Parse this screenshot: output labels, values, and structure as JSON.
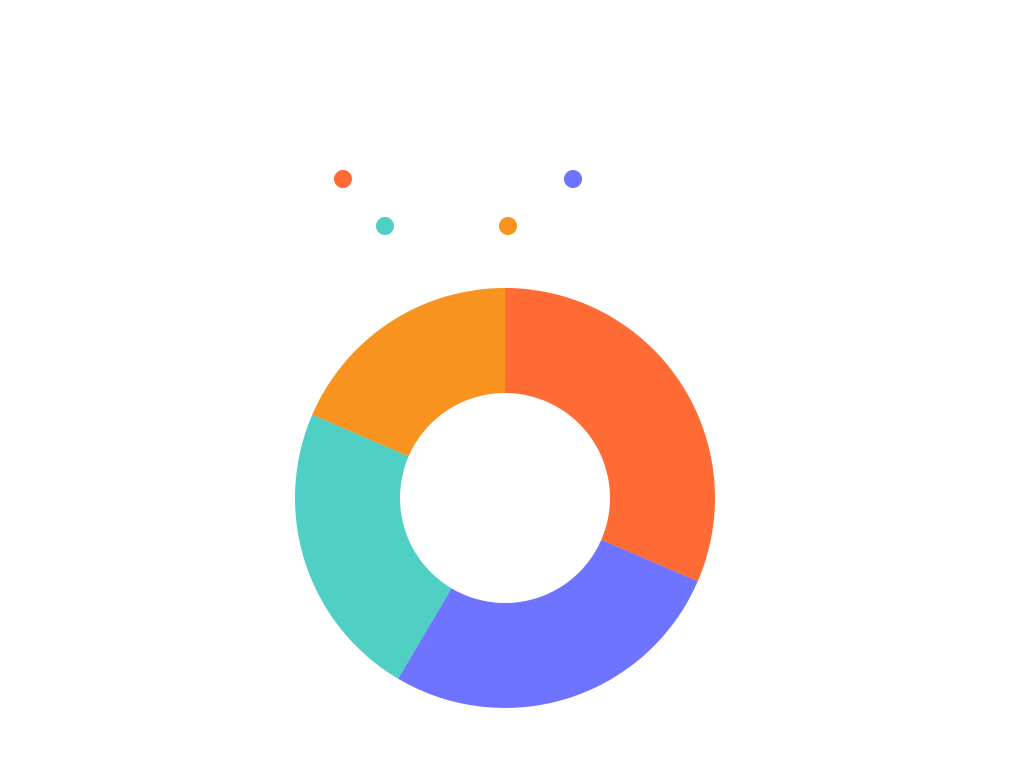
{
  "chart_data": {
    "type": "pie",
    "variant": "donut",
    "title": "",
    "legend_position": "top",
    "categories": [
      "",
      "",
      "",
      ""
    ],
    "values": [
      31.5,
      27.0,
      23.0,
      18.5
    ],
    "colors": [
      "#ff6b35",
      "#6e74ff",
      "#50cfc5",
      "#f7931e"
    ],
    "start_angle_deg": 0,
    "direction": "clockwise",
    "data_labels_shown": false
  }
}
